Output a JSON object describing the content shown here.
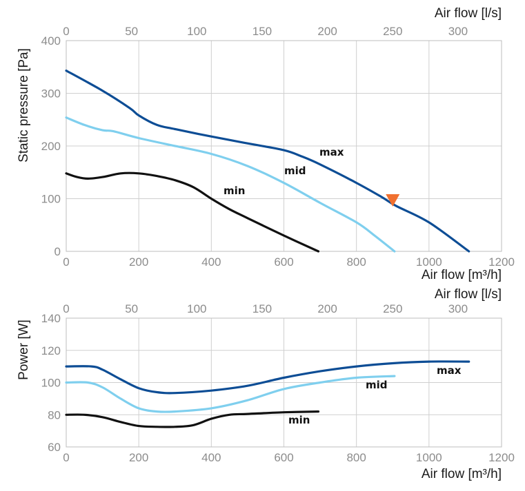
{
  "chart_data": [
    {
      "type": "line",
      "xlabel": "Air flow [m³/h]",
      "x2label": "Air flow [l/s]",
      "ylabel": "Static pressure [Pa]",
      "xlim": [
        0,
        1200
      ],
      "x2lim": [
        0,
        333.33
      ],
      "ylim": [
        0,
        400
      ],
      "xticks": [
        0,
        200,
        400,
        600,
        800,
        1000,
        1200
      ],
      "x2ticks": [
        0,
        50,
        100,
        150,
        200,
        250,
        300
      ],
      "yticks": [
        0,
        100,
        200,
        300,
        400
      ],
      "grid": true,
      "series": [
        {
          "name": "max",
          "color": "#0d4d95",
          "x": [
            0,
            100,
            175,
            200,
            250,
            300,
            400,
            500,
            600,
            650,
            700,
            800,
            870,
            910,
            1000,
            1110
          ],
          "y": [
            343,
            305,
            272,
            258,
            240,
            232,
            218,
            205,
            192,
            180,
            165,
            130,
            103,
            86,
            55,
            0
          ]
        },
        {
          "name": "mid",
          "color": "#7fcfee",
          "x": [
            0,
            50,
            100,
            130,
            200,
            300,
            400,
            500,
            600,
            700,
            800,
            850,
            905
          ],
          "y": [
            254,
            240,
            230,
            228,
            215,
            200,
            185,
            162,
            130,
            92,
            55,
            30,
            0
          ]
        },
        {
          "name": "min",
          "color": "#111111",
          "x": [
            0,
            30,
            60,
            100,
            150,
            200,
            250,
            300,
            350,
            400,
            450,
            500,
            600,
            695
          ],
          "y": [
            148,
            141,
            138,
            141,
            148,
            148,
            143,
            135,
            122,
            100,
            80,
            63,
            30,
            0
          ]
        }
      ],
      "operating_point": {
        "x": 900,
        "y": 98,
        "color": "#f07030",
        "marker": "triangle-down"
      }
    },
    {
      "type": "line",
      "xlabel": "Air flow [m³/h]",
      "x2label": "Air flow [l/s]",
      "ylabel": "Power [W]",
      "xlim": [
        0,
        1200
      ],
      "x2lim": [
        0,
        333.33
      ],
      "ylim": [
        60,
        140
      ],
      "xticks": [
        0,
        200,
        400,
        600,
        800,
        1000,
        1200
      ],
      "x2ticks": [
        0,
        50,
        100,
        150,
        200,
        250,
        300
      ],
      "yticks": [
        60,
        80,
        100,
        120,
        140
      ],
      "grid": true,
      "series": [
        {
          "name": "max",
          "color": "#0d4d95",
          "x": [
            0,
            70,
            100,
            150,
            200,
            250,
            300,
            400,
            500,
            600,
            700,
            800,
            900,
            1000,
            1110
          ],
          "y": [
            110,
            110,
            108,
            102,
            96.5,
            94,
            93.5,
            95,
            98,
            103,
            107,
            110,
            112,
            113,
            113
          ]
        },
        {
          "name": "mid",
          "color": "#7fcfee",
          "x": [
            0,
            60,
            100,
            150,
            200,
            250,
            300,
            400,
            500,
            600,
            700,
            800,
            905
          ],
          "y": [
            100,
            100,
            97,
            90,
            84,
            82,
            82,
            84,
            89,
            96,
            100,
            103,
            104
          ]
        },
        {
          "name": "min",
          "color": "#111111",
          "x": [
            0,
            50,
            100,
            150,
            200,
            250,
            300,
            350,
            400,
            450,
            500,
            600,
            695
          ],
          "y": [
            80,
            80,
            78.5,
            75.5,
            73,
            72.5,
            72.5,
            73.5,
            77.5,
            80,
            80.5,
            81.5,
            82
          ]
        }
      ]
    }
  ]
}
